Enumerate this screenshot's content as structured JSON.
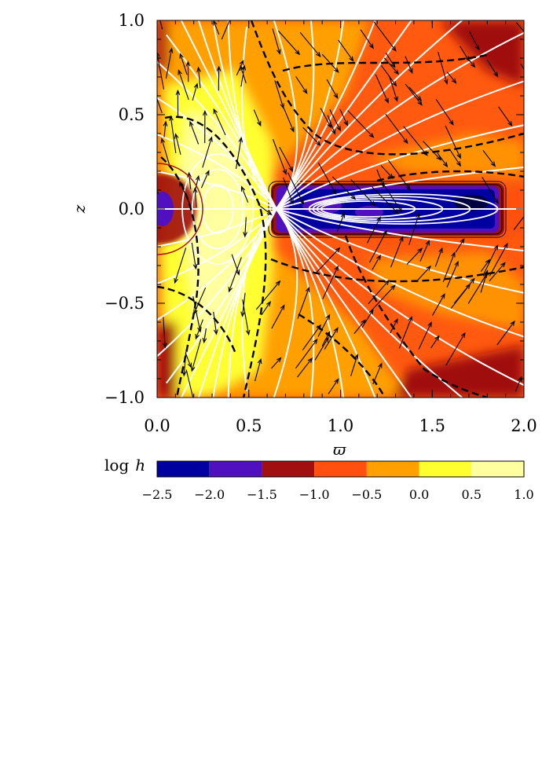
{
  "chart_data": {
    "type": "heatmap",
    "xlabel": "ϖ",
    "ylabel": "z",
    "xlim": [
      0.0,
      2.0
    ],
    "ylim": [
      -1.0,
      1.0
    ],
    "x_ticks": [
      0.0,
      0.5,
      1.0,
      1.5,
      2.0
    ],
    "x_tick_labels": [
      "0.0",
      "0.5",
      "1.0",
      "1.5",
      "2.0"
    ],
    "y_ticks": [
      1.0,
      0.5,
      0.0,
      -0.5,
      -1.0
    ],
    "y_tick_labels": [
      "1.0",
      "0.5",
      "0.0",
      "−0.5",
      "−1.0"
    ],
    "colorbar": {
      "label_prefix": "log",
      "label_var": "h",
      "boundaries": [
        -2.5,
        -2.0,
        -1.5,
        -1.0,
        -0.5,
        0.0,
        0.5,
        1.0
      ],
      "tick_labels": [
        "−2.5",
        "−2.0",
        "−1.5",
        "−1.0",
        "−0.5",
        "0.0",
        "0.5",
        "1.0"
      ],
      "colors": [
        "#0000a0",
        "#5010c0",
        "#a01010",
        "#ff5010",
        "#ffa000",
        "#ffff30",
        "#ffffa0"
      ]
    },
    "regions": [
      {
        "name": "torus",
        "omega_range": [
          0.62,
          1.88
        ],
        "z_range": [
          -0.14,
          0.14
        ],
        "log_h_range": [
          -2.5,
          -1.5
        ]
      },
      {
        "name": "axis_core",
        "omega_range": [
          0.0,
          0.1
        ],
        "z_range": [
          -0.06,
          0.06
        ],
        "log_h": -2.0
      }
    ],
    "overlays": [
      "white field lines",
      "dashed black contours",
      "black velocity arrows",
      "dark red circle near origin"
    ]
  }
}
